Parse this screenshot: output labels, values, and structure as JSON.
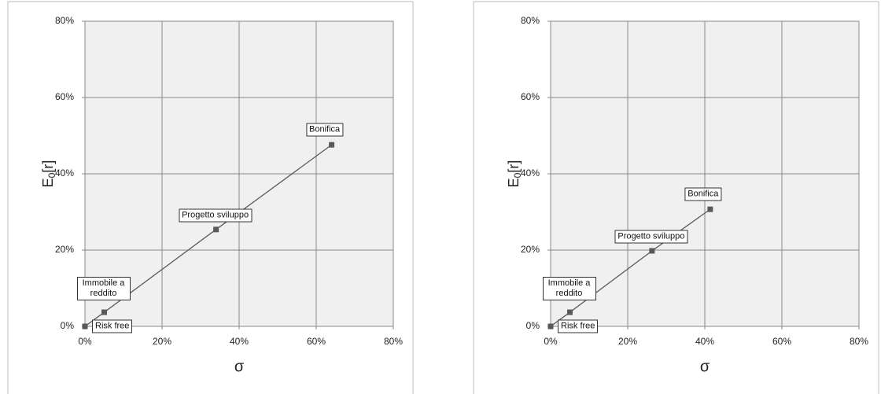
{
  "chart_data": [
    {
      "type": "line",
      "color": "#595959",
      "plot_bg": "#f0f0f0",
      "grid": true,
      "x_label": "σ",
      "y_label": {
        "base": "E",
        "sub": "0",
        "rest": "[r]"
      },
      "point_labels": [
        "Risk free",
        "Immobile a reddito",
        "Progetto sviluppo",
        "Bonifica"
      ],
      "x": [
        0,
        5,
        34,
        64
      ],
      "values": [
        0,
        3.7,
        25.4,
        47.6
      ],
      "xlim": [
        0,
        80
      ],
      "ylim": [
        0,
        80
      ],
      "xticks": [
        {
          "value": 0,
          "label": "0%"
        },
        {
          "value": 20,
          "label": "20%"
        },
        {
          "value": 40,
          "label": "40%"
        },
        {
          "value": 60,
          "label": "60%"
        },
        {
          "value": 80,
          "label": "80%"
        }
      ],
      "yticks": [
        {
          "value": 0,
          "label": "0%"
        },
        {
          "value": 20,
          "label": "20%"
        },
        {
          "value": 40,
          "label": "40%"
        },
        {
          "value": 60,
          "label": "60%"
        },
        {
          "value": 80,
          "label": "80%"
        }
      ]
    },
    {
      "type": "line",
      "color": "#595959",
      "plot_bg": "#f0f0f0",
      "grid": true,
      "x_label": "σ",
      "y_label": {
        "base": "E",
        "sub": "0",
        "rest": "[r]"
      },
      "point_labels": [
        "Risk free",
        "Immobile a reddito",
        "Progetto sviluppo",
        "Bonifica"
      ],
      "x": [
        0,
        5,
        26.3,
        41.4
      ],
      "values": [
        0,
        3.7,
        19.8,
        30.7
      ],
      "xlim": [
        0,
        80
      ],
      "ylim": [
        0,
        80
      ],
      "xticks": [
        {
          "value": 0,
          "label": "0%"
        },
        {
          "value": 20,
          "label": "20%"
        },
        {
          "value": 40,
          "label": "40%"
        },
        {
          "value": 60,
          "label": "60%"
        },
        {
          "value": 80,
          "label": "80%"
        }
      ],
      "yticks": [
        {
          "value": 0,
          "label": "0%"
        },
        {
          "value": 20,
          "label": "20%"
        },
        {
          "value": 40,
          "label": "40%"
        },
        {
          "value": 60,
          "label": "60%"
        },
        {
          "value": 80,
          "label": "80%"
        }
      ]
    }
  ]
}
